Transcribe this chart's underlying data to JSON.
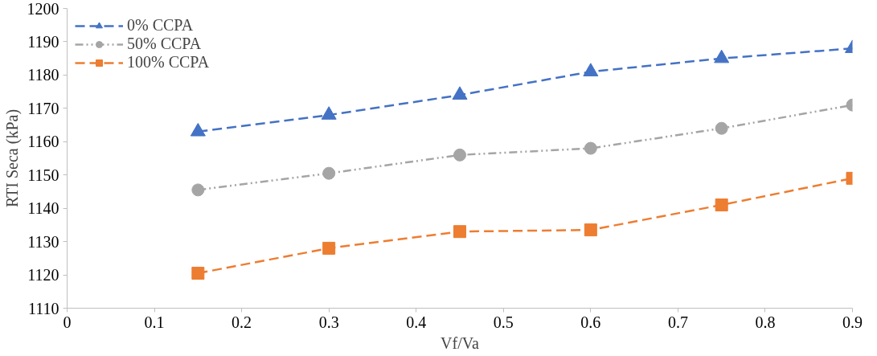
{
  "chart_data": {
    "type": "line",
    "xlabel": "Vf/Va",
    "ylabel": "RTI Seca (kPa)",
    "x": [
      0.15,
      0.3,
      0.45,
      0.6,
      0.75,
      0.9
    ],
    "series": [
      {
        "name": "0% CCPA",
        "color": "#4472c4",
        "marker": "triangle",
        "line_style": "dashed",
        "values": [
          1163,
          1168,
          1174,
          1181,
          1185,
          1188
        ]
      },
      {
        "name": "50% CCPA",
        "color": "#a5a5a5",
        "marker": "circle",
        "line_style": "dotted",
        "values": [
          1145.5,
          1150.5,
          1156,
          1158,
          1164,
          1171
        ]
      },
      {
        "name": "100% CCPA",
        "color": "#ed7d31",
        "marker": "square",
        "line_style": "dashed",
        "values": [
          1120.5,
          1128,
          1133,
          1133.5,
          1141,
          1149
        ]
      }
    ],
    "xlim": [
      0,
      0.9
    ],
    "xticks": [
      0,
      0.1,
      0.2,
      0.3,
      0.4,
      0.5,
      0.6,
      0.7,
      0.8,
      0.9
    ],
    "ylim": [
      1110,
      1200
    ],
    "yticks": [
      1110,
      1120,
      1130,
      1140,
      1150,
      1160,
      1170,
      1180,
      1190,
      1200
    ],
    "grid": false,
    "legend": "top left"
  }
}
